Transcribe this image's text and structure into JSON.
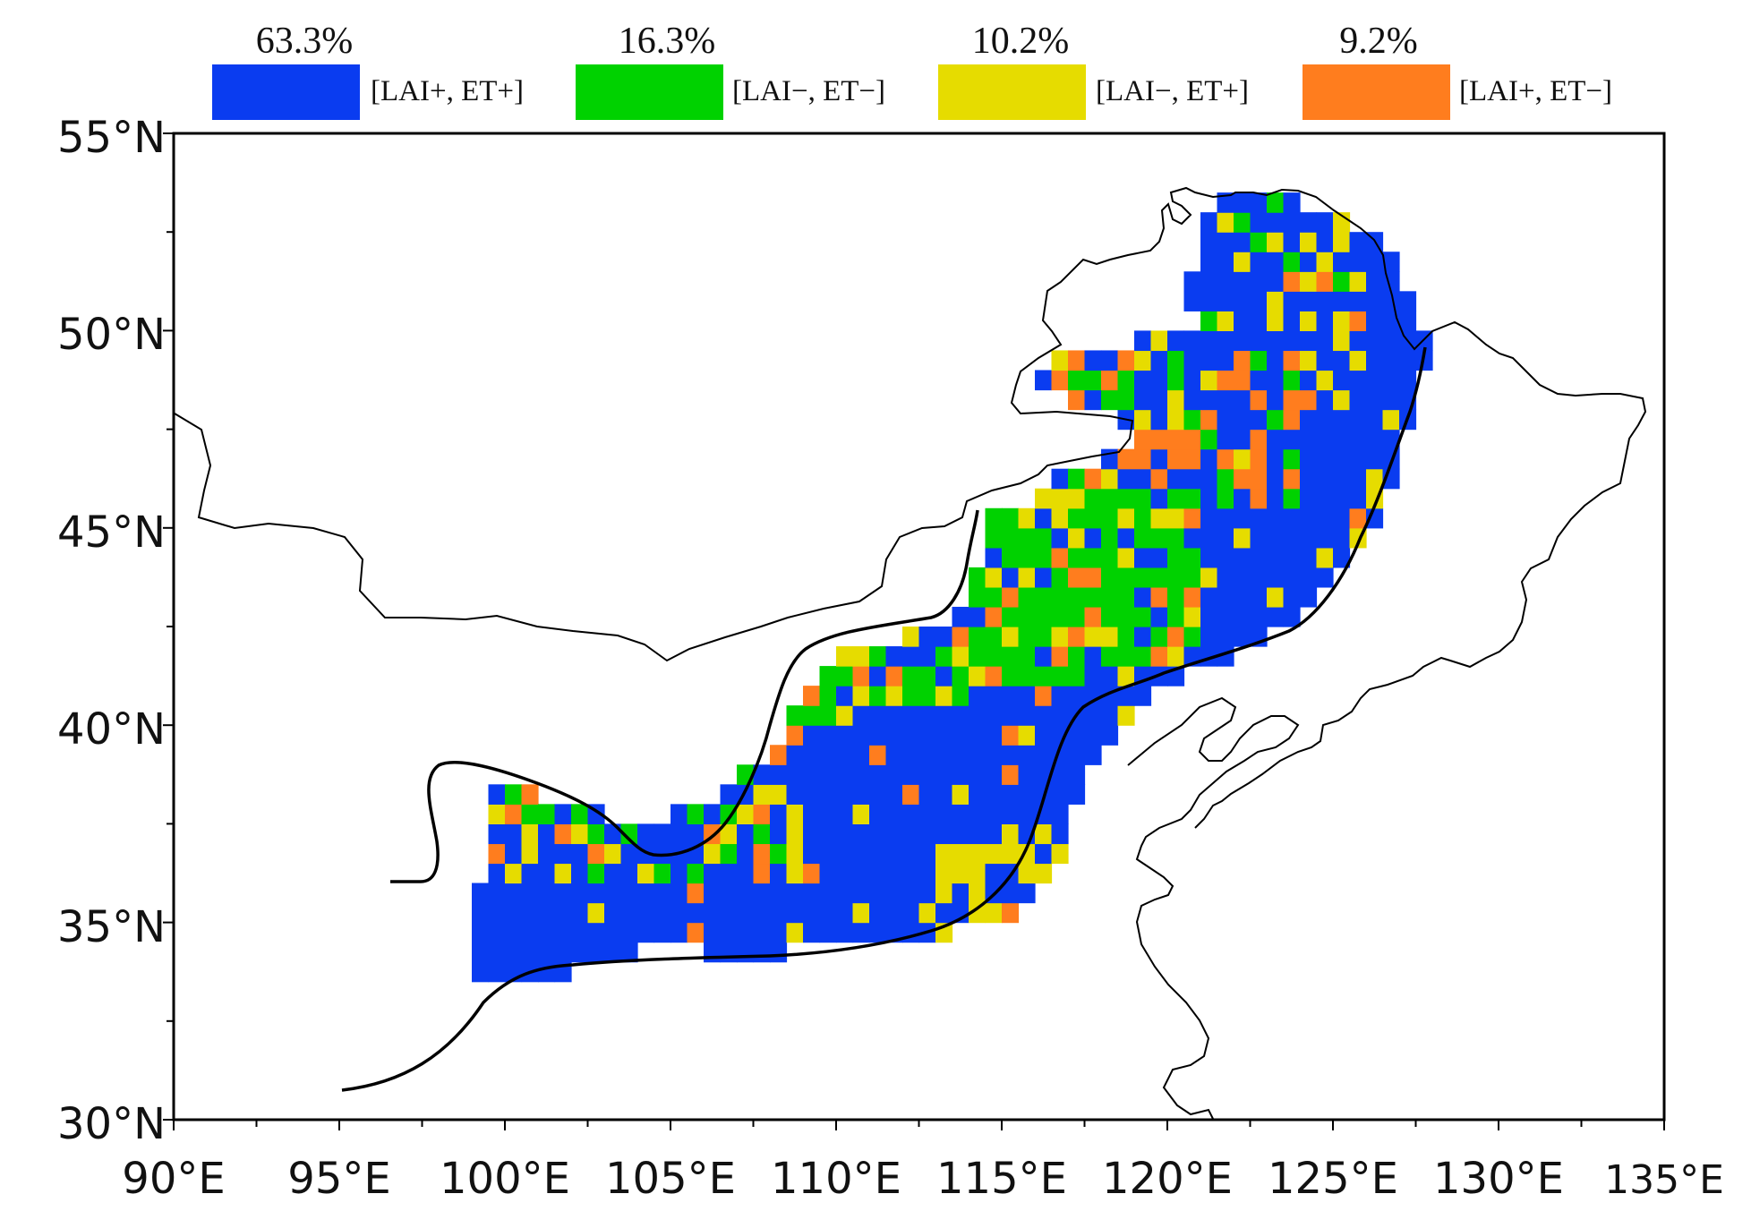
{
  "legend": [
    {
      "percent": "63.3%",
      "label": "[LAI+, ET+]",
      "color": "#0a3cf0"
    },
    {
      "percent": "16.3%",
      "label": "[LAI−, ET−]",
      "color": "#00d200"
    },
    {
      "percent": "10.2%",
      "label": "[LAI−, ET+]",
      "color": "#e6dc00"
    },
    {
      "percent": "9.2%",
      "label": "[LAI+, ET−]",
      "color": "#ff7d1e"
    }
  ],
  "axes": {
    "lat_labels": [
      "55°N",
      "50°N",
      "45°N",
      "40°N",
      "35°N",
      "30°N"
    ],
    "lon_labels": [
      "90°E",
      "95°E",
      "100°E",
      "105°E",
      "110°E",
      "115°E",
      "120°E",
      "125°E",
      "130°E",
      "135°E"
    ],
    "lat_range": [
      30,
      55
    ],
    "lon_range": [
      90,
      135
    ]
  },
  "map": {
    "colors": {
      "blue": "#0a3cf0",
      "green": "#00d200",
      "yellow": "#e6dc00",
      "orange": "#ff7d1e"
    },
    "region": "transition zone grid cells with LAI/ET trend combinations"
  }
}
